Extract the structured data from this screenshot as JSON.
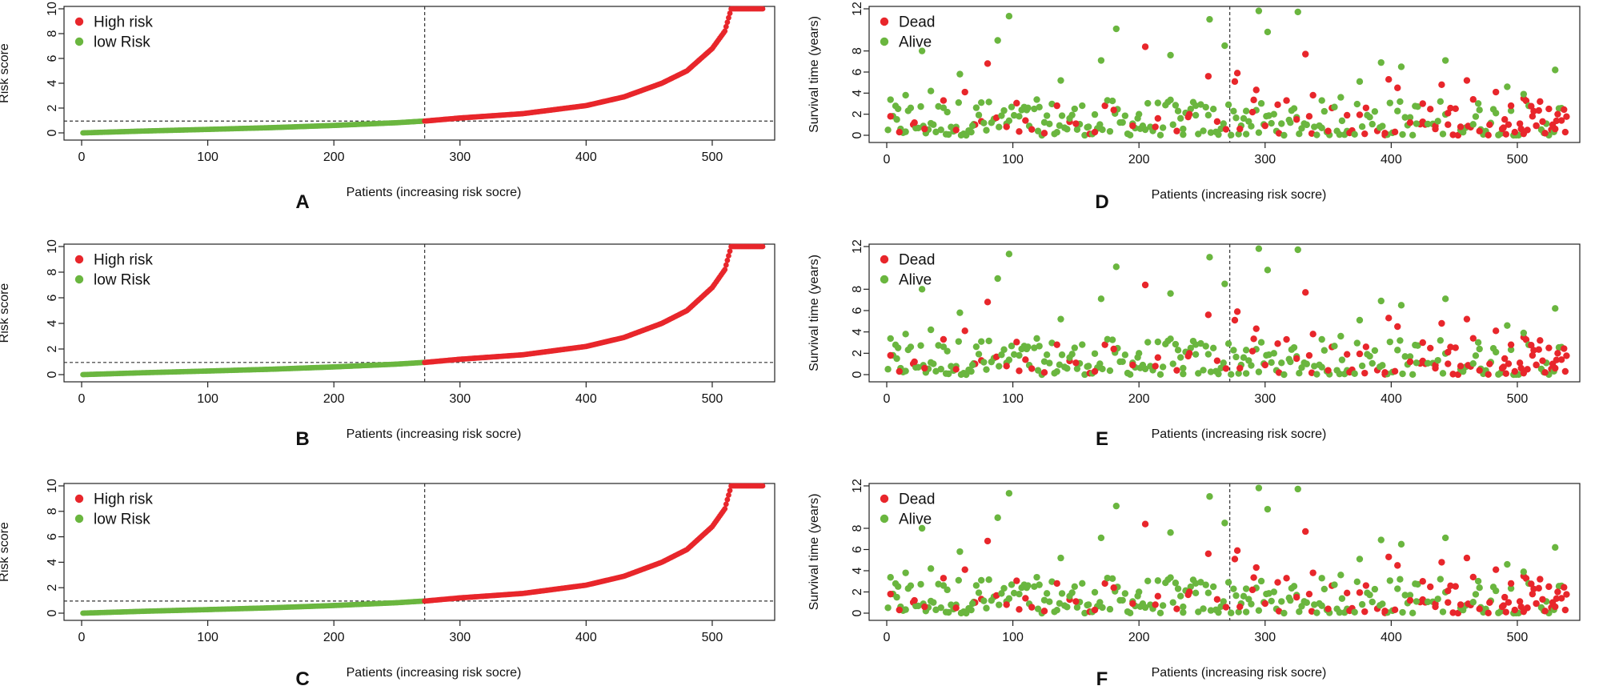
{
  "figure": {
    "x_label": "Patients (increasing risk socre)",
    "risk_ylabel": "Risk score",
    "surv_ylabel": "Survival time (years)",
    "risk_legend": [
      "High risk",
      "low Risk"
    ],
    "surv_legend": [
      "Dead",
      "Alive"
    ],
    "colors": {
      "red": "#e8262b",
      "green": "#6ab63f",
      "axis": "#222222"
    }
  },
  "chart_data": [
    {
      "panel": "A",
      "type": "scatter",
      "kind": "risk",
      "xlabel": "Patients (increasing risk socre)",
      "ylabel": "Risk score",
      "xlim": [
        0,
        540
      ],
      "ylim": [
        0,
        10
      ],
      "xticks": [
        0,
        100,
        200,
        300,
        400,
        500
      ],
      "yticks": [
        0,
        2,
        4,
        6,
        8,
        10
      ],
      "cutoff_x": 272,
      "cutoff_y": 0.95,
      "n": 540,
      "series": [
        {
          "name": "High risk",
          "color": "#e8262b",
          "x": [
            272,
            300,
            350,
            400,
            430,
            460,
            480,
            500,
            510,
            515,
            540
          ],
          "y": [
            0.95,
            1.2,
            1.55,
            2.2,
            2.9,
            4.0,
            5.0,
            6.8,
            8.2,
            10.0,
            10.0
          ]
        },
        {
          "name": "low Risk",
          "color": "#6ab63f",
          "x": [
            1,
            50,
            100,
            150,
            200,
            250,
            271
          ],
          "y": [
            0.0,
            0.15,
            0.28,
            0.42,
            0.6,
            0.82,
            0.95
          ]
        }
      ]
    },
    {
      "panel": "B",
      "type": "scatter",
      "kind": "risk",
      "xlabel": "Patients (increasing risk socre)",
      "ylabel": "Risk score",
      "xlim": [
        0,
        540
      ],
      "ylim": [
        0,
        10
      ],
      "xticks": [
        0,
        100,
        200,
        300,
        400,
        500
      ],
      "yticks": [
        0,
        2,
        4,
        6,
        8,
        10
      ],
      "cutoff_x": 272,
      "cutoff_y": 0.95,
      "n": 540,
      "series": [
        {
          "name": "High risk",
          "color": "#e8262b",
          "x": [
            272,
            300,
            350,
            400,
            430,
            460,
            480,
            500,
            510,
            515,
            540
          ],
          "y": [
            0.95,
            1.2,
            1.55,
            2.2,
            2.9,
            4.0,
            5.0,
            6.8,
            8.2,
            10.0,
            10.0
          ]
        },
        {
          "name": "low Risk",
          "color": "#6ab63f",
          "x": [
            1,
            50,
            100,
            150,
            200,
            250,
            271
          ],
          "y": [
            0.0,
            0.15,
            0.28,
            0.42,
            0.6,
            0.82,
            0.95
          ]
        }
      ]
    },
    {
      "panel": "C",
      "type": "scatter",
      "kind": "risk",
      "xlabel": "Patients (increasing risk socre)",
      "ylabel": "Risk score",
      "xlim": [
        0,
        540
      ],
      "ylim": [
        0,
        10
      ],
      "xticks": [
        0,
        100,
        200,
        300,
        400,
        500
      ],
      "yticks": [
        0,
        2,
        4,
        6,
        8,
        10
      ],
      "cutoff_x": 272,
      "cutoff_y": 0.95,
      "n": 540,
      "series": [
        {
          "name": "High risk",
          "color": "#e8262b",
          "x": [
            272,
            300,
            350,
            400,
            430,
            460,
            480,
            500,
            510,
            515,
            540
          ],
          "y": [
            0.95,
            1.2,
            1.55,
            2.2,
            2.9,
            4.0,
            5.0,
            6.8,
            8.2,
            10.0,
            10.0
          ]
        },
        {
          "name": "low Risk",
          "color": "#6ab63f",
          "x": [
            1,
            50,
            100,
            150,
            200,
            250,
            271
          ],
          "y": [
            0.0,
            0.15,
            0.28,
            0.42,
            0.6,
            0.82,
            0.95
          ]
        }
      ]
    },
    {
      "panel": "D",
      "type": "scatter",
      "kind": "survival",
      "xlabel": "Patients (increasing risk socre)",
      "ylabel": "Survival time (years)",
      "xlim": [
        0,
        540
      ],
      "ylim": [
        0,
        12
      ],
      "xticks": [
        0,
        100,
        200,
        300,
        400,
        500
      ],
      "yticks": [
        0,
        2,
        4,
        6,
        8,
        12
      ],
      "cutoff_x": 272,
      "series": [
        {
          "name": "Dead",
          "color": "#e8262b",
          "x": [
            3,
            10,
            22,
            30,
            45,
            55,
            62,
            70,
            80,
            95,
            110,
            125,
            135,
            150,
            165,
            180,
            195,
            205,
            215,
            230,
            240,
            255,
            262,
            276,
            278,
            280,
            290,
            293,
            300,
            310,
            325,
            332,
            338,
            350,
            365,
            380,
            395,
            398,
            405,
            415,
            425,
            435,
            440,
            445,
            455,
            460,
            465,
            470,
            478,
            483,
            488,
            490,
            495,
            498,
            502,
            505,
            508,
            512,
            515,
            518,
            520,
            522,
            525,
            528,
            530,
            532,
            535,
            538
          ],
          "y": [
            1.8,
            0.3,
            1.2,
            0.6,
            3.3,
            0.5,
            4.1,
            1.0,
            6.8,
            0.8,
            1.4,
            0.2,
            2.8,
            1.1,
            0.3,
            2.4,
            0.9,
            8.4,
            1.6,
            0.4,
            2.0,
            5.6,
            1.3,
            5.1,
            5.9,
            0.6,
            2.2,
            4.3,
            0.9,
            2.9,
            1.5,
            7.7,
            3.8,
            0.4,
            1.9,
            2.6,
            0.2,
            5.3,
            4.5,
            1.2,
            3.0,
            0.6,
            4.8,
            2.1,
            0.8,
            5.2,
            3.4,
            0.4,
            1.0,
            4.1,
            0.6,
            1.5,
            2.8,
            0.3,
            1.1,
            3.5,
            0.5,
            1.8,
            0.9,
            3.2,
            1.3,
            0.2,
            2.5,
            1.0,
            0.6,
            2.0,
            1.4,
            0.3
          ]
        },
        {
          "name": "Alive",
          "color": "#6ab63f",
          "x": [
            8,
            15,
            28,
            35,
            48,
            58,
            68,
            75,
            88,
            97,
            105,
            112,
            120,
            138,
            145,
            160,
            170,
            182,
            200,
            225,
            235,
            245,
            256,
            268,
            285,
            295,
            302,
            320,
            326,
            345,
            360,
            375,
            392,
            408,
            420,
            443,
            470,
            492,
            505,
            530
          ],
          "y": [
            1.5,
            3.8,
            8.0,
            4.2,
            2.2,
            5.8,
            0.9,
            3.1,
            9.0,
            11.3,
            1.8,
            2.6,
            0.4,
            5.2,
            1.6,
            0.8,
            7.1,
            10.1,
            2.0,
            7.6,
            0.6,
            1.9,
            11.0,
            8.5,
            2.3,
            11.8,
            9.8,
            1.2,
            11.7,
            0.7,
            3.6,
            5.1,
            6.9,
            6.5,
            1.1,
            7.1,
            2.4,
            4.6,
            3.9,
            6.2
          ]
        }
      ]
    },
    {
      "panel": "E",
      "type": "scatter",
      "kind": "survival",
      "xlabel": "Patients (increasing risk socre)",
      "ylabel": "Survival time (years)",
      "xlim": [
        0,
        540
      ],
      "ylim": [
        0,
        12
      ],
      "xticks": [
        0,
        100,
        200,
        300,
        400,
        500
      ],
      "yticks": [
        0,
        2,
        4,
        6,
        8,
        12
      ],
      "cutoff_x": 272,
      "series": [
        {
          "name": "Dead",
          "color": "#e8262b",
          "x": [
            3,
            10,
            22,
            30,
            45,
            55,
            62,
            70,
            80,
            95,
            110,
            125,
            135,
            150,
            165,
            180,
            195,
            205,
            215,
            230,
            240,
            255,
            262,
            276,
            278,
            280,
            290,
            293,
            300,
            310,
            325,
            332,
            338,
            350,
            365,
            380,
            395,
            398,
            405,
            415,
            425,
            435,
            440,
            445,
            455,
            460,
            465,
            470,
            478,
            483,
            488,
            490,
            495,
            498,
            502,
            505,
            508,
            512,
            515,
            518,
            520,
            522,
            525,
            528,
            530,
            532,
            535,
            538
          ],
          "y": [
            1.8,
            0.3,
            1.2,
            0.6,
            3.3,
            0.5,
            4.1,
            1.0,
            6.8,
            0.8,
            1.4,
            0.2,
            2.8,
            1.1,
            0.3,
            2.4,
            0.9,
            8.4,
            1.6,
            0.4,
            2.0,
            5.6,
            1.3,
            5.1,
            5.9,
            0.6,
            2.2,
            4.3,
            0.9,
            2.9,
            1.5,
            7.7,
            3.8,
            0.4,
            1.9,
            2.6,
            0.2,
            5.3,
            4.5,
            1.2,
            3.0,
            0.6,
            4.8,
            2.1,
            0.8,
            5.2,
            3.4,
            0.4,
            1.0,
            4.1,
            0.6,
            1.5,
            2.8,
            0.3,
            1.1,
            3.5,
            0.5,
            1.8,
            0.9,
            3.2,
            1.3,
            0.2,
            2.5,
            1.0,
            0.6,
            2.0,
            1.4,
            0.3
          ]
        },
        {
          "name": "Alive",
          "color": "#6ab63f",
          "x": [
            8,
            15,
            28,
            35,
            48,
            58,
            68,
            75,
            88,
            97,
            105,
            112,
            120,
            138,
            145,
            160,
            170,
            182,
            200,
            225,
            235,
            245,
            256,
            268,
            285,
            295,
            302,
            320,
            326,
            345,
            360,
            375,
            392,
            408,
            420,
            443,
            470,
            492,
            505,
            530
          ],
          "y": [
            1.5,
            3.8,
            8.0,
            4.2,
            2.2,
            5.8,
            0.9,
            3.1,
            9.0,
            11.3,
            1.8,
            2.6,
            0.4,
            5.2,
            1.6,
            0.8,
            7.1,
            10.1,
            2.0,
            7.6,
            0.6,
            1.9,
            11.0,
            8.5,
            2.3,
            11.8,
            9.8,
            1.2,
            11.7,
            0.7,
            3.6,
            5.1,
            6.9,
            6.5,
            1.1,
            7.1,
            2.4,
            4.6,
            3.9,
            6.2
          ]
        }
      ]
    },
    {
      "panel": "F",
      "type": "scatter",
      "kind": "survival",
      "xlabel": "Patients (increasing risk socre)",
      "ylabel": "Survival time (years)",
      "xlim": [
        0,
        540
      ],
      "ylim": [
        0,
        12
      ],
      "xticks": [
        0,
        100,
        200,
        300,
        400,
        500
      ],
      "yticks": [
        0,
        2,
        4,
        6,
        8,
        12
      ],
      "cutoff_x": 272,
      "series": [
        {
          "name": "Dead",
          "color": "#e8262b",
          "x": [
            3,
            10,
            22,
            30,
            45,
            55,
            62,
            70,
            80,
            95,
            110,
            125,
            135,
            150,
            165,
            180,
            195,
            205,
            215,
            230,
            240,
            255,
            262,
            276,
            278,
            280,
            290,
            293,
            300,
            310,
            325,
            332,
            338,
            350,
            365,
            380,
            395,
            398,
            405,
            415,
            425,
            435,
            440,
            445,
            455,
            460,
            465,
            470,
            478,
            483,
            488,
            490,
            495,
            498,
            502,
            505,
            508,
            512,
            515,
            518,
            520,
            522,
            525,
            528,
            530,
            532,
            535,
            538
          ],
          "y": [
            1.8,
            0.3,
            1.2,
            0.6,
            3.3,
            0.5,
            4.1,
            1.0,
            6.8,
            0.8,
            1.4,
            0.2,
            2.8,
            1.1,
            0.3,
            2.4,
            0.9,
            8.4,
            1.6,
            0.4,
            2.0,
            5.6,
            1.3,
            5.1,
            5.9,
            0.6,
            2.2,
            4.3,
            0.9,
            2.9,
            1.5,
            7.7,
            3.8,
            0.4,
            1.9,
            2.6,
            0.2,
            5.3,
            4.5,
            1.2,
            3.0,
            0.6,
            4.8,
            2.1,
            0.8,
            5.2,
            3.4,
            0.4,
            1.0,
            4.1,
            0.6,
            1.5,
            2.8,
            0.3,
            1.1,
            3.5,
            0.5,
            1.8,
            0.9,
            3.2,
            1.3,
            0.2,
            2.5,
            1.0,
            0.6,
            2.0,
            1.4,
            0.3
          ]
        },
        {
          "name": "Alive",
          "color": "#6ab63f",
          "x": [
            8,
            15,
            28,
            35,
            48,
            58,
            68,
            75,
            88,
            97,
            105,
            112,
            120,
            138,
            145,
            160,
            170,
            182,
            200,
            225,
            235,
            245,
            256,
            268,
            285,
            295,
            302,
            320,
            326,
            345,
            360,
            375,
            392,
            408,
            420,
            443,
            470,
            492,
            505,
            530
          ],
          "y": [
            1.5,
            3.8,
            8.0,
            4.2,
            2.2,
            5.8,
            0.9,
            3.1,
            9.0,
            11.3,
            1.8,
            2.6,
            0.4,
            5.2,
            1.6,
            0.8,
            7.1,
            10.1,
            2.0,
            7.6,
            0.6,
            1.9,
            11.0,
            8.5,
            2.3,
            11.8,
            9.8,
            1.2,
            11.7,
            0.7,
            3.6,
            5.1,
            6.9,
            6.5,
            1.1,
            7.1,
            2.4,
            4.6,
            3.9,
            6.2
          ]
        }
      ]
    }
  ]
}
